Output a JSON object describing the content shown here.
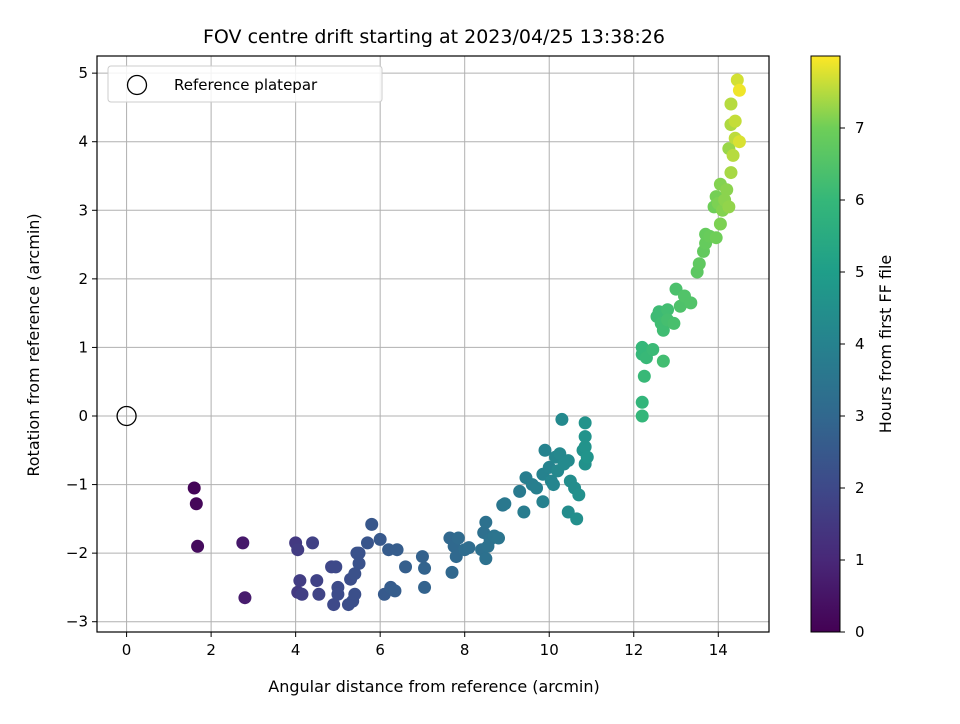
{
  "chart_data": {
    "type": "scatter",
    "title": "FOV centre drift starting at 2023/04/25 13:38:26",
    "xlabel": "Angular distance from reference (arcmin)",
    "ylabel": "Rotation from reference (arcmin)",
    "xlim": [
      -0.7,
      15.2
    ],
    "ylim": [
      -3.15,
      5.25
    ],
    "xticks": [
      0,
      2,
      4,
      6,
      8,
      10,
      12,
      14
    ],
    "yticks": [
      -3,
      -2,
      -1,
      0,
      1,
      2,
      3,
      4,
      5
    ],
    "grid": true,
    "legend": {
      "placement": "upper-left",
      "entries": [
        "Reference platepar"
      ]
    },
    "reference_point": {
      "x": 0,
      "y": 0,
      "marker": "open-circle"
    },
    "colorbar": {
      "label": "Hours from first FF file",
      "colormap": "viridis",
      "range": [
        0,
        8.0
      ],
      "ticks": [
        0,
        1,
        2,
        3,
        4,
        5,
        6,
        7
      ]
    },
    "points": [
      [
        1.6,
        -1.05,
        0.1
      ],
      [
        1.65,
        -1.28,
        0.15
      ],
      [
        1.68,
        -1.9,
        0.25
      ],
      [
        2.75,
        -1.85,
        0.6
      ],
      [
        2.8,
        -2.65,
        0.7
      ],
      [
        4.0,
        -1.85,
        1.5
      ],
      [
        4.05,
        -1.95,
        1.6
      ],
      [
        4.05,
        -2.57,
        1.55
      ],
      [
        4.1,
        -2.4,
        1.65
      ],
      [
        4.15,
        -2.6,
        1.7
      ],
      [
        4.4,
        -1.85,
        1.75
      ],
      [
        4.5,
        -2.4,
        1.8
      ],
      [
        4.55,
        -2.6,
        1.85
      ],
      [
        4.85,
        -2.2,
        1.95
      ],
      [
        4.9,
        -2.75,
        2.0
      ],
      [
        4.95,
        -2.2,
        2.0
      ],
      [
        5.0,
        -2.5,
        2.05
      ],
      [
        5.0,
        -2.6,
        2.1
      ],
      [
        5.25,
        -2.75,
        2.15
      ],
      [
        5.3,
        -2.38,
        2.15
      ],
      [
        5.35,
        -2.7,
        2.2
      ],
      [
        5.4,
        -2.6,
        2.2
      ],
      [
        5.4,
        -2.3,
        2.25
      ],
      [
        5.45,
        -2.0,
        2.25
      ],
      [
        5.5,
        -2.15,
        2.3
      ],
      [
        5.5,
        -2.0,
        2.3
      ],
      [
        5.7,
        -1.85,
        2.4
      ],
      [
        5.8,
        -1.58,
        2.45
      ],
      [
        6.0,
        -1.8,
        2.5
      ],
      [
        6.1,
        -2.6,
        2.55
      ],
      [
        6.2,
        -1.95,
        2.6
      ],
      [
        6.25,
        -2.5,
        2.6
      ],
      [
        6.35,
        -2.55,
        2.65
      ],
      [
        6.4,
        -1.95,
        2.65
      ],
      [
        6.6,
        -2.2,
        2.7
      ],
      [
        7.0,
        -2.05,
        2.8
      ],
      [
        7.05,
        -2.22,
        2.85
      ],
      [
        7.05,
        -2.5,
        2.85
      ],
      [
        7.65,
        -1.78,
        3.0
      ],
      [
        7.7,
        -2.28,
        3.0
      ],
      [
        7.75,
        -1.9,
        3.05
      ],
      [
        7.8,
        -2.05,
        3.05
      ],
      [
        7.85,
        -1.78,
        3.1
      ],
      [
        8.0,
        -1.95,
        3.15
      ],
      [
        8.1,
        -1.92,
        3.2
      ],
      [
        8.4,
        -1.95,
        3.3
      ],
      [
        8.45,
        -1.7,
        3.3
      ],
      [
        8.5,
        -1.55,
        3.35
      ],
      [
        8.5,
        -2.08,
        3.35
      ],
      [
        8.55,
        -1.9,
        3.4
      ],
      [
        8.6,
        -1.8,
        3.4
      ],
      [
        8.7,
        -1.75,
        3.45
      ],
      [
        8.8,
        -1.78,
        3.5
      ],
      [
        8.9,
        -1.3,
        3.55
      ],
      [
        8.95,
        -1.28,
        3.6
      ],
      [
        9.3,
        -1.1,
        3.7
      ],
      [
        9.4,
        -1.4,
        3.75
      ],
      [
        9.45,
        -0.9,
        3.8
      ],
      [
        9.6,
        -1.0,
        3.85
      ],
      [
        9.7,
        -1.05,
        3.9
      ],
      [
        9.85,
        -1.25,
        3.95
      ],
      [
        9.85,
        -0.85,
        4.0
      ],
      [
        9.9,
        -0.5,
        4.0
      ],
      [
        10.0,
        -0.75,
        4.05
      ],
      [
        10.05,
        -0.95,
        4.1
      ],
      [
        10.1,
        -1.0,
        4.1
      ],
      [
        10.15,
        -0.6,
        4.15
      ],
      [
        10.2,
        -0.8,
        4.2
      ],
      [
        10.25,
        -0.55,
        4.2
      ],
      [
        10.3,
        -0.05,
        4.25
      ],
      [
        10.35,
        -0.7,
        4.3
      ],
      [
        10.45,
        -0.65,
        4.3
      ],
      [
        10.45,
        -1.4,
        4.35
      ],
      [
        10.5,
        -0.95,
        4.4
      ],
      [
        10.6,
        -1.05,
        4.4
      ],
      [
        10.65,
        -1.5,
        4.45
      ],
      [
        10.7,
        -1.15,
        4.5
      ],
      [
        10.8,
        -0.5,
        4.55
      ],
      [
        10.85,
        -0.7,
        4.55
      ],
      [
        10.85,
        -0.1,
        4.6
      ],
      [
        10.85,
        -0.3,
        4.6
      ],
      [
        10.85,
        -0.45,
        4.6
      ],
      [
        10.9,
        -0.6,
        4.65
      ],
      [
        12.2,
        0.2,
        5.9
      ],
      [
        12.2,
        0.0,
        5.95
      ],
      [
        12.2,
        0.9,
        6.0
      ],
      [
        12.2,
        1.0,
        6.0
      ],
      [
        12.25,
        0.58,
        6.05
      ],
      [
        12.3,
        0.85,
        6.05
      ],
      [
        12.45,
        0.97,
        6.1
      ],
      [
        12.55,
        1.45,
        6.15
      ],
      [
        12.6,
        1.52,
        6.15
      ],
      [
        12.65,
        1.35,
        6.2
      ],
      [
        12.7,
        1.25,
        6.2
      ],
      [
        12.7,
        0.8,
        6.25
      ],
      [
        12.8,
        1.55,
        6.25
      ],
      [
        12.8,
        1.4,
        6.3
      ],
      [
        12.95,
        1.35,
        6.35
      ],
      [
        13.0,
        1.85,
        6.4
      ],
      [
        13.1,
        1.6,
        6.45
      ],
      [
        13.2,
        1.75,
        6.5
      ],
      [
        13.35,
        1.65,
        6.5
      ],
      [
        13.5,
        2.1,
        6.7
      ],
      [
        13.55,
        2.22,
        6.75
      ],
      [
        13.65,
        2.4,
        6.8
      ],
      [
        13.7,
        2.52,
        6.85
      ],
      [
        13.7,
        2.65,
        6.85
      ],
      [
        13.8,
        2.62,
        6.9
      ],
      [
        13.9,
        3.05,
        7.0
      ],
      [
        13.95,
        2.6,
        7.0
      ],
      [
        13.95,
        3.2,
        7.05
      ],
      [
        14.0,
        3.1,
        7.1
      ],
      [
        14.05,
        2.8,
        7.1
      ],
      [
        14.05,
        3.38,
        7.15
      ],
      [
        14.1,
        3.0,
        7.15
      ],
      [
        14.15,
        3.15,
        7.2
      ],
      [
        14.2,
        3.3,
        7.2
      ],
      [
        14.25,
        3.05,
        7.25
      ],
      [
        14.25,
        3.9,
        7.3
      ],
      [
        14.3,
        3.55,
        7.4
      ],
      [
        14.3,
        4.25,
        7.45
      ],
      [
        14.3,
        4.55,
        7.5
      ],
      [
        14.35,
        3.8,
        7.5
      ],
      [
        14.4,
        4.05,
        7.55
      ],
      [
        14.4,
        4.3,
        7.6
      ],
      [
        14.45,
        4.9,
        7.7
      ],
      [
        14.5,
        4.0,
        7.75
      ],
      [
        14.5,
        4.75,
        7.9
      ]
    ]
  }
}
